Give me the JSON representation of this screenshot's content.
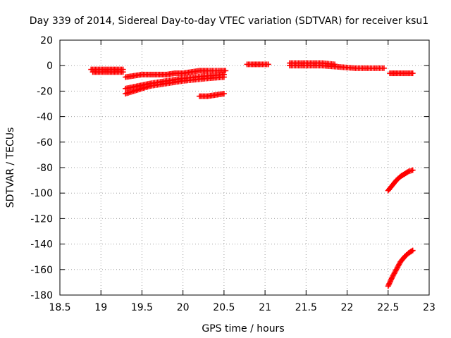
{
  "chart_data": {
    "type": "scatter",
    "title": "Day 339 of 2014, Sidereal Day-to-day VTEC variation (SDTVAR) for receiver ksu1",
    "xlabel": "GPS time / hours",
    "ylabel": "SDTVAR / TECUs",
    "xlim": [
      18.5,
      23
    ],
    "ylim": [
      -180,
      20
    ],
    "xticks": [
      18.5,
      19,
      19.5,
      20,
      20.5,
      21,
      21.5,
      22,
      22.5,
      23
    ],
    "yticks": [
      20,
      0,
      -20,
      -40,
      -60,
      -80,
      -100,
      -120,
      -140,
      -160,
      -180
    ],
    "grid": true,
    "marker": "plus",
    "color": "#ff0000",
    "series": [
      {
        "x": [
          18.88,
          19.0,
          19.1,
          19.2,
          19.27
        ],
        "y": [
          -3,
          -3,
          -3,
          -3,
          -3
        ]
      },
      {
        "x": [
          18.9,
          19.0,
          19.1,
          19.2,
          19.27
        ],
        "y": [
          -5,
          -5,
          -5,
          -5,
          -5
        ]
      },
      {
        "x": [
          19.3,
          19.4,
          19.5,
          19.6,
          19.7,
          19.8,
          19.9,
          20.0,
          20.1,
          20.2,
          20.3,
          20.45,
          20.52
        ],
        "y": [
          -9,
          -8,
          -7,
          -7,
          -7,
          -7,
          -6,
          -6,
          -5,
          -4,
          -4,
          -4,
          -4
        ]
      },
      {
        "x": [
          19.3,
          19.45,
          19.6,
          19.8,
          20.0,
          20.15,
          20.3,
          20.5
        ],
        "y": [
          -18,
          -16,
          -14,
          -12,
          -10,
          -9,
          -8,
          -7
        ]
      },
      {
        "x": [
          19.3,
          19.45,
          19.6,
          19.8,
          20.0,
          20.15,
          20.3,
          20.5
        ],
        "y": [
          -22,
          -19,
          -16,
          -14,
          -12,
          -11,
          -10,
          -9
        ]
      },
      {
        "x": [
          20.2,
          20.3,
          20.4,
          20.5
        ],
        "y": [
          -24,
          -24,
          -23,
          -22
        ]
      },
      {
        "x": [
          20.78,
          20.85,
          20.95,
          21.04
        ],
        "y": [
          1,
          1,
          1,
          1
        ]
      },
      {
        "x": [
          21.3,
          21.5,
          21.7,
          21.9,
          22.1,
          22.3,
          22.45
        ],
        "y": [
          0,
          0,
          0,
          -1,
          -2,
          -2,
          -2
        ]
      },
      {
        "x": [
          21.3,
          21.5,
          21.7,
          21.85
        ],
        "y": [
          2,
          2,
          2,
          1
        ]
      },
      {
        "x": [
          22.52,
          22.6,
          22.7,
          22.8
        ],
        "y": [
          -6,
          -6,
          -6,
          -6
        ]
      },
      {
        "x": [
          22.5,
          22.55,
          22.6,
          22.65,
          22.7,
          22.75,
          22.8
        ],
        "y": [
          -98,
          -94,
          -90,
          -87,
          -85,
          -83,
          -82
        ]
      },
      {
        "x": [
          22.5,
          22.55,
          22.6,
          22.65,
          22.7,
          22.75,
          22.8
        ],
        "y": [
          -173,
          -166,
          -160,
          -154,
          -150,
          -147,
          -145
        ]
      }
    ]
  }
}
